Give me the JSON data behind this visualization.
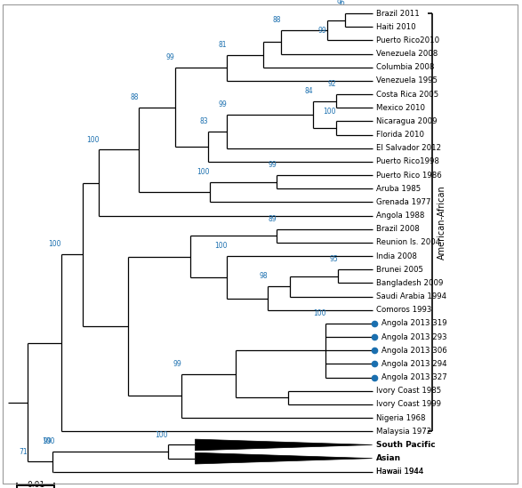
{
  "background_color": "#ffffff",
  "line_color": "#000000",
  "bootstrap_color": "#1a6faf",
  "dot_color": "#1a6faf",
  "scale_bar_label": "0.01",
  "american_african_label": "American-African",
  "leaves": [
    {
      "name": "Brazil 2011",
      "y": 1,
      "dot": false
    },
    {
      "name": "Haiti 2010",
      "y": 2,
      "dot": false
    },
    {
      "name": "Puerto Rico2010",
      "y": 3,
      "dot": false
    },
    {
      "name": "Venezuela 2008",
      "y": 4,
      "dot": false
    },
    {
      "name": "Columbia 2008",
      "y": 5,
      "dot": false
    },
    {
      "name": "Venezuela 1995",
      "y": 6,
      "dot": false
    },
    {
      "name": "Costa Rica 2005",
      "y": 7,
      "dot": false
    },
    {
      "name": "Mexico 2010",
      "y": 8,
      "dot": false
    },
    {
      "name": "Nicaragua 2009",
      "y": 9,
      "dot": false
    },
    {
      "name": "Florida 2010",
      "y": 10,
      "dot": false
    },
    {
      "name": "El Salvador 2012",
      "y": 11,
      "dot": false
    },
    {
      "name": "Puerto Rico1998",
      "y": 12,
      "dot": false
    },
    {
      "name": "Puerto Rico 1986",
      "y": 13,
      "dot": false
    },
    {
      "name": "Aruba 1985",
      "y": 14,
      "dot": false
    },
    {
      "name": "Grenada 1977",
      "y": 15,
      "dot": false
    },
    {
      "name": "Angola 1988",
      "y": 16,
      "dot": false
    },
    {
      "name": "Brazil 2008",
      "y": 17,
      "dot": false
    },
    {
      "name": "Reunion Is. 2004",
      "y": 18,
      "dot": false
    },
    {
      "name": "India 2008",
      "y": 19,
      "dot": false
    },
    {
      "name": "Brunei 2005",
      "y": 20,
      "dot": false
    },
    {
      "name": "Bangladesh 2009",
      "y": 21,
      "dot": false
    },
    {
      "name": "Saudi Arabia 1994",
      "y": 22,
      "dot": false
    },
    {
      "name": "Comoros 1993",
      "y": 23,
      "dot": false
    },
    {
      "name": "Angola 2013 319",
      "y": 24,
      "dot": true
    },
    {
      "name": "Angola 2013 293",
      "y": 25,
      "dot": true
    },
    {
      "name": "Angola 2013 306",
      "y": 26,
      "dot": true
    },
    {
      "name": "Angola 2013 294",
      "y": 27,
      "dot": true
    },
    {
      "name": "Angola 2013 327",
      "y": 28,
      "dot": true
    },
    {
      "name": "Ivory Coast 1985",
      "y": 29,
      "dot": false
    },
    {
      "name": "Ivory Coast 1999",
      "y": 30,
      "dot": false
    },
    {
      "name": "Nigeria 1968",
      "y": 31,
      "dot": false
    },
    {
      "name": "Malaysia 1972",
      "y": 32,
      "dot": false
    },
    {
      "name": "South Pacific",
      "y": 33,
      "triangle": true,
      "dot": false
    },
    {
      "name": "Asian",
      "y": 34,
      "triangle": true,
      "dot": false
    },
    {
      "name": "Hawaii 1944",
      "y": 35,
      "dot": false
    }
  ]
}
